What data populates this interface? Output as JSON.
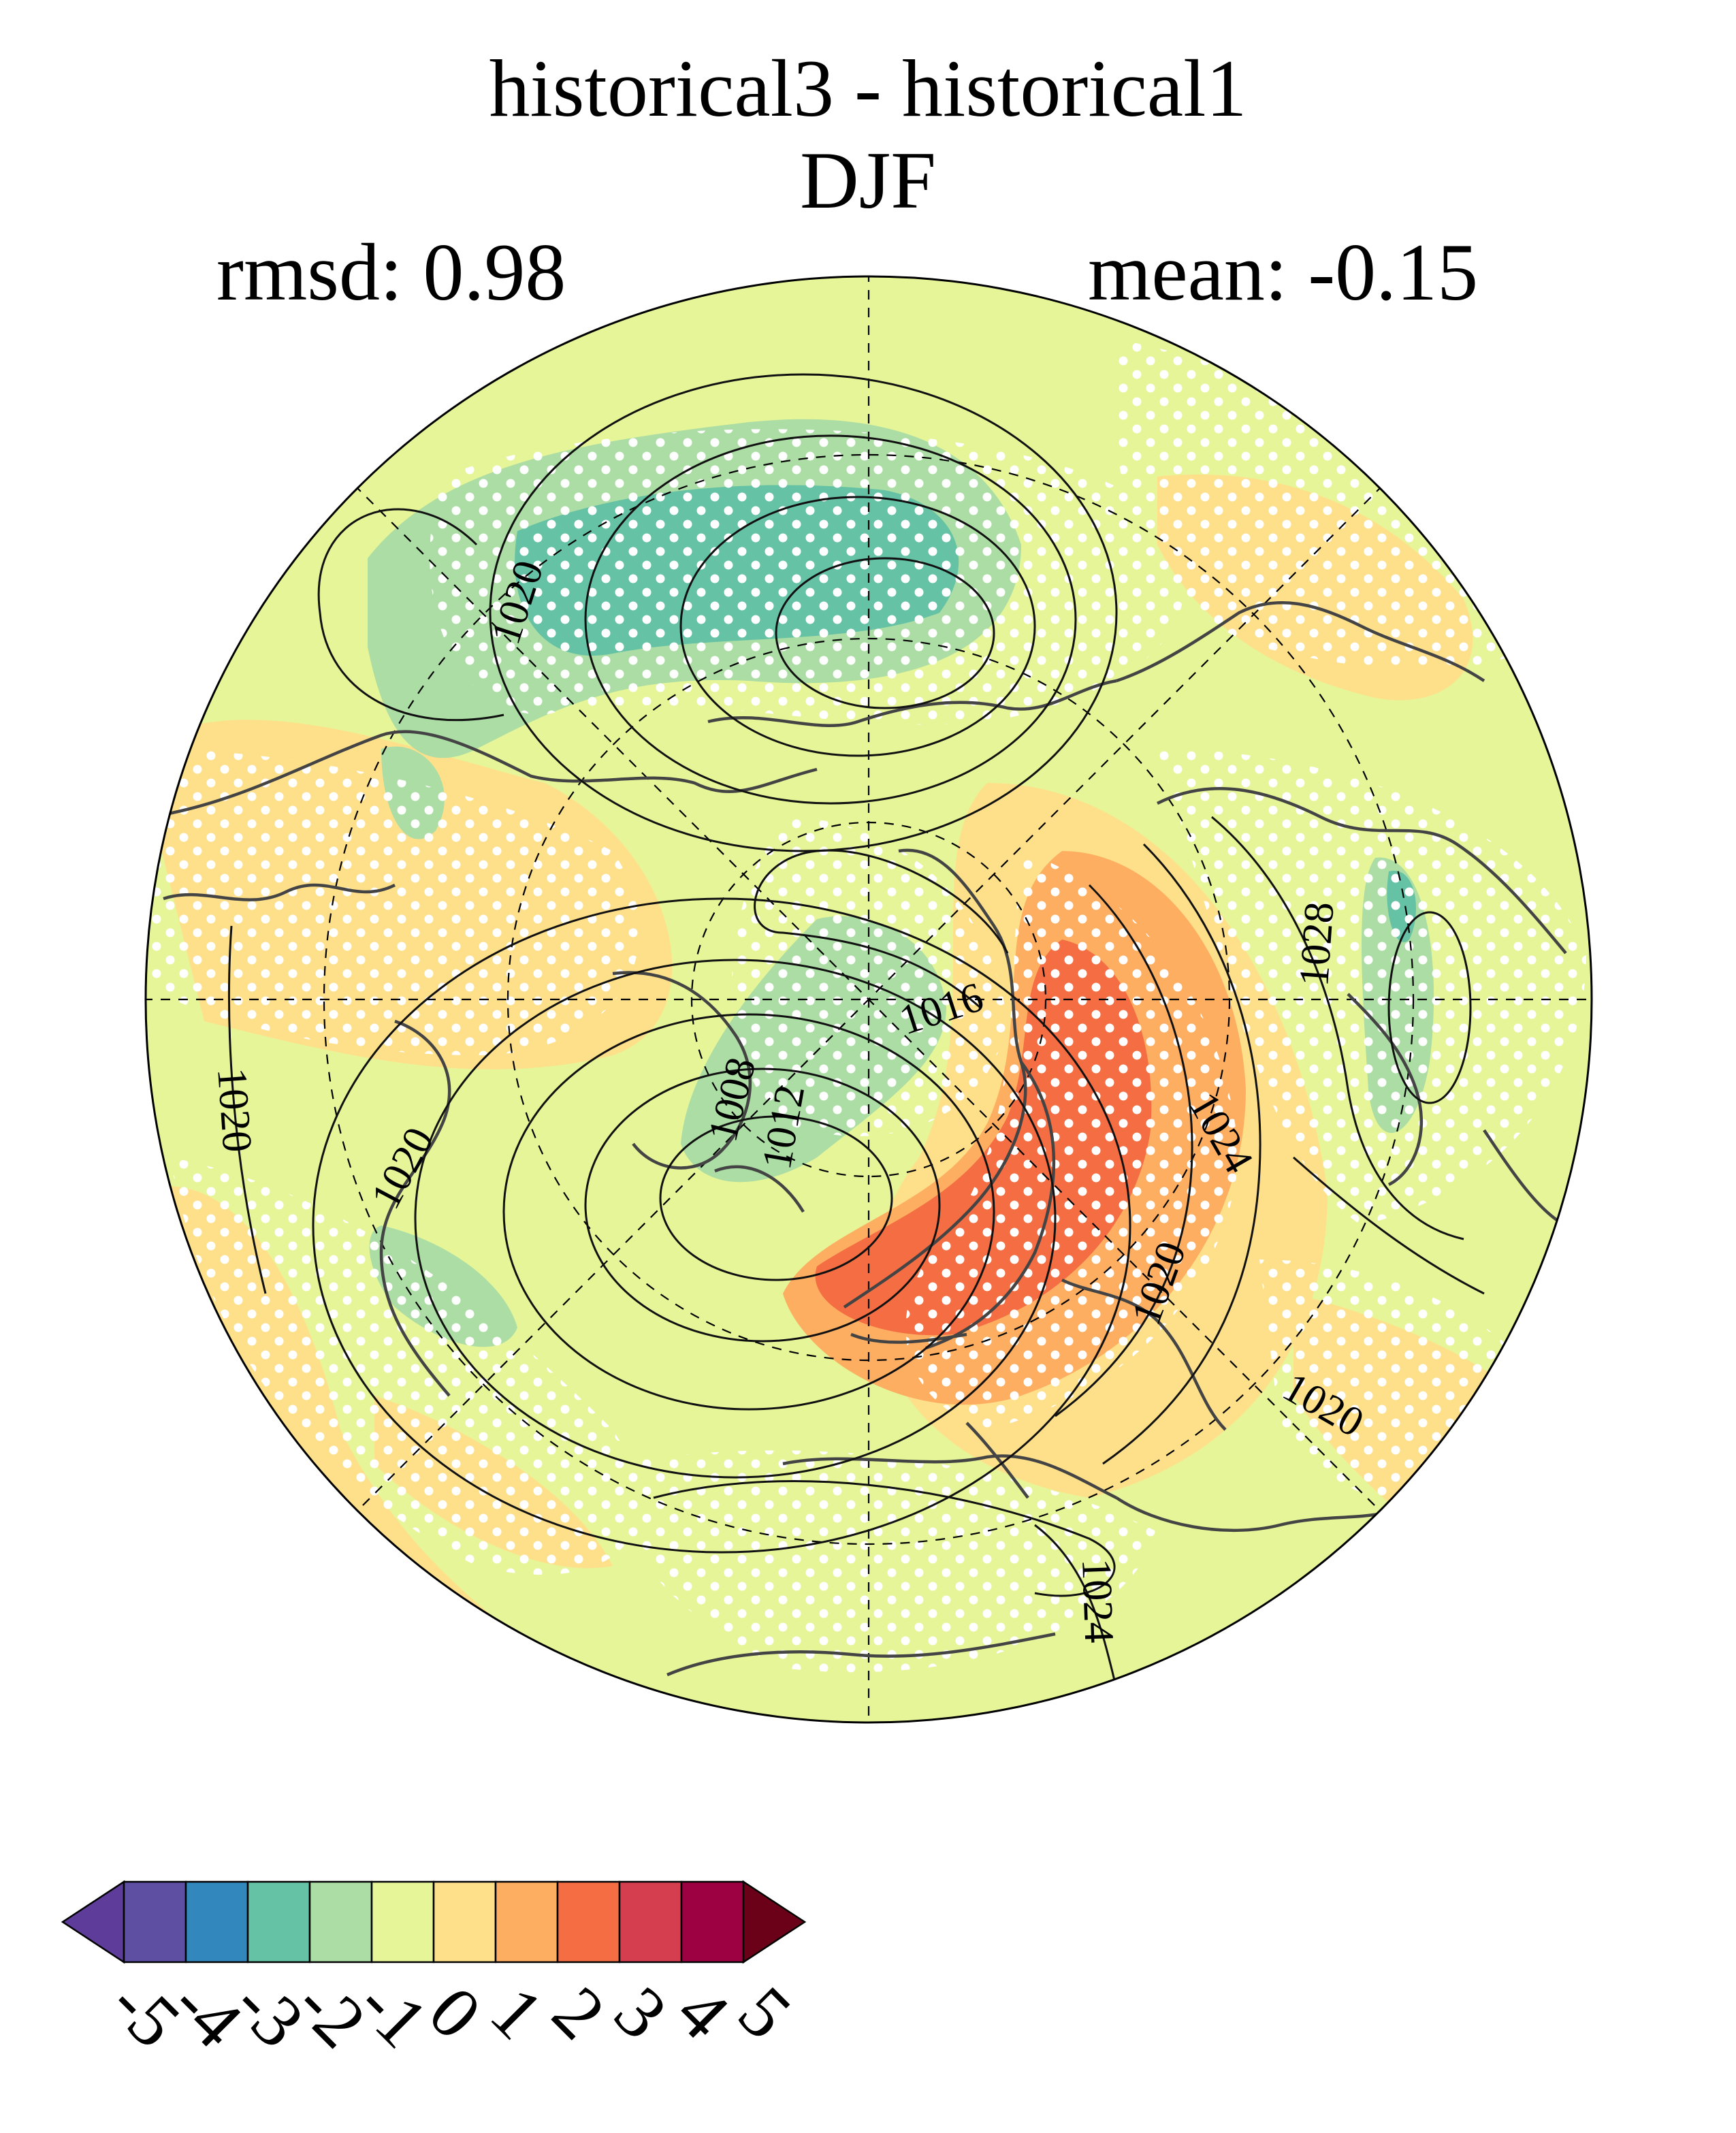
{
  "title": {
    "line1": "historical3 - historical1",
    "line2": "DJF"
  },
  "stats": {
    "rmsd_label": "rmsd: 0.98",
    "mean_label": "mean: -0.15"
  },
  "map": {
    "projection": "north polar stereographic",
    "contour_labels": [
      "1020",
      "1016",
      "1008",
      "1012",
      "1020",
      "1020",
      "1028",
      "1024",
      "1020",
      "1020",
      "1020",
      "1024"
    ],
    "significance_stippling": true,
    "colors": {
      "ocean_background": "#fee08b",
      "coastline": "#444444",
      "contour": "#111111",
      "stipple": "#ffffff"
    }
  },
  "colorbar": {
    "ticks": [
      "-5",
      "-4",
      "-3",
      "-2",
      "-1",
      "0",
      "1",
      "2",
      "3",
      "4",
      "5"
    ],
    "colors": [
      "#5e3c99",
      "#5e4fa2",
      "#3288bd",
      "#66c2a5",
      "#abdda4",
      "#e6f598",
      "#fee08b",
      "#fdae61",
      "#f46d43",
      "#d53e4f",
      "#9e0142",
      "#6b0019"
    ],
    "extend": "both"
  }
}
